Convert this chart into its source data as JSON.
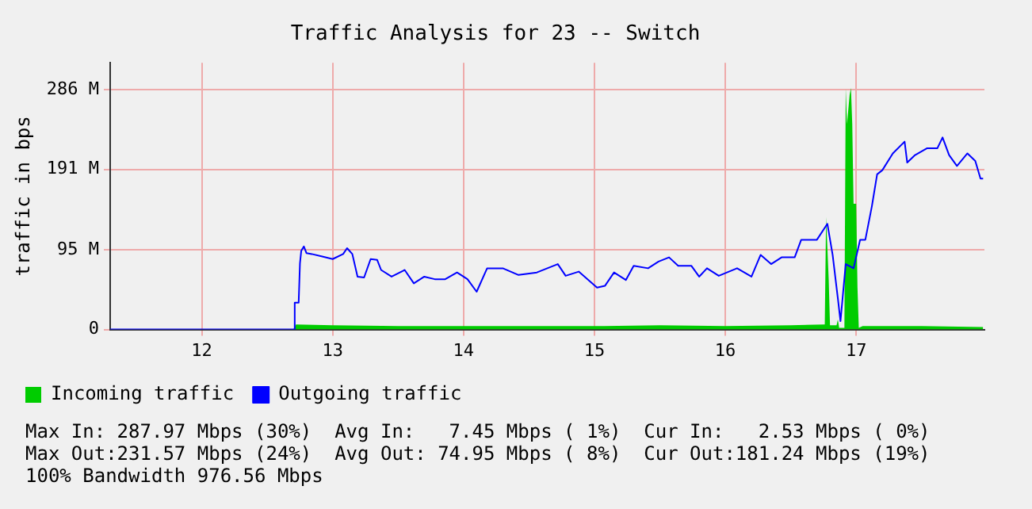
{
  "chart_data": {
    "type": "line",
    "title": "Traffic Analysis for 23 -- Switch",
    "ylabel": "traffic in bps",
    "xlim": [
      11.3,
      17.98
    ],
    "xticks": [
      12,
      13,
      14,
      15,
      16,
      17
    ],
    "ylim": [
      0,
      318
    ],
    "yticks": [
      0,
      {
        "value": 95,
        "label": "95 M"
      },
      {
        "value": 191,
        "label": "191 M"
      },
      {
        "value": 286,
        "label": "286 M"
      }
    ],
    "grid": true,
    "legend": "bottom",
    "marker": "none",
    "series": [
      {
        "name": "Incoming traffic",
        "type": "area",
        "color": "#00cc00",
        "x": [
          11.3,
          12.7,
          12.72,
          13.0,
          13.5,
          14.0,
          14.5,
          15.0,
          15.5,
          16.0,
          16.5,
          16.76,
          16.77,
          16.79,
          16.8,
          16.85,
          16.86,
          16.87,
          16.91,
          16.92,
          16.93,
          16.95,
          16.96,
          16.97,
          16.98,
          17.0,
          17.01,
          17.02,
          17.05,
          17.5,
          17.97
        ],
        "values": [
          0,
          0,
          6,
          5,
          4,
          4,
          4,
          4,
          5,
          4,
          5,
          6,
          134,
          60,
          5,
          5,
          12,
          2,
          2,
          288,
          245,
          280,
          288,
          245,
          150,
          150,
          50,
          2,
          4,
          4,
          3
        ]
      },
      {
        "name": "Outgoing traffic",
        "color": "#0000ff",
        "x": [
          11.3,
          12.7,
          12.71,
          12.74,
          12.75,
          12.76,
          12.78,
          12.8,
          12.84,
          12.92,
          13.0,
          13.08,
          13.11,
          13.15,
          13.19,
          13.24,
          13.29,
          13.34,
          13.37,
          13.45,
          13.55,
          13.62,
          13.7,
          13.78,
          13.86,
          13.95,
          14.03,
          14.1,
          14.18,
          14.3,
          14.42,
          14.56,
          14.72,
          14.78,
          14.88,
          15.02,
          15.08,
          15.15,
          15.24,
          15.3,
          15.41,
          15.49,
          15.57,
          15.64,
          15.74,
          15.8,
          15.86,
          15.95,
          16.09,
          16.2,
          16.27,
          16.35,
          16.43,
          16.53,
          16.58,
          16.7,
          16.78,
          16.82,
          16.86,
          16.88,
          16.92,
          16.98,
          17.03,
          17.07,
          17.12,
          17.16,
          17.2,
          17.28,
          17.37,
          17.39,
          17.45,
          17.54,
          17.62,
          17.66,
          17.71,
          17.77,
          17.85,
          17.91,
          17.95,
          17.97
        ],
        "values": [
          0,
          0,
          32,
          32,
          79,
          94,
          99,
          91,
          90,
          87,
          84,
          90,
          97,
          90,
          63,
          62,
          84,
          83,
          71,
          63,
          71,
          55,
          63,
          60,
          60,
          68,
          60,
          45,
          73,
          73,
          65,
          68,
          78,
          64,
          69,
          50,
          52,
          68,
          59,
          76,
          73,
          81,
          86,
          76,
          76,
          63,
          73,
          64,
          73,
          63,
          89,
          78,
          86,
          86,
          107,
          107,
          126,
          89,
          37,
          10,
          78,
          73,
          107,
          107,
          147,
          185,
          190,
          210,
          224,
          199,
          208,
          216,
          216,
          229,
          208,
          195,
          210,
          201,
          180,
          180
        ]
      }
    ],
    "annotations": [
      "Max In: 287.97 Mbps (30%)  Avg In:   7.45 Mbps ( 1%)  Cur In:   2.53 Mbps ( 0%)",
      "Max Out:231.57 Mbps (24%)  Avg Out: 74.95 Mbps ( 8%)  Cur Out:181.24 Mbps (19%)",
      "100% Bandwidth 976.56 Mbps"
    ]
  }
}
